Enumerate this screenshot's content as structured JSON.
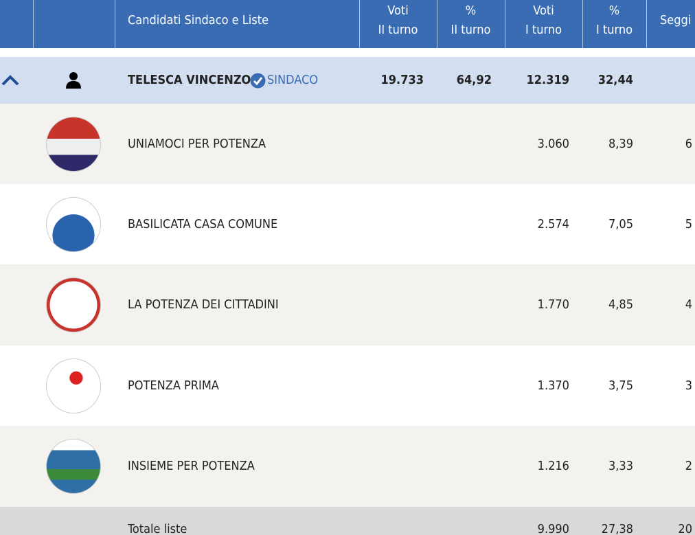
{
  "header": {
    "columns": [
      "Candidati Sindaco e Liste",
      "Voti\nII turno",
      "%\nII turno",
      "Voti\nI turno",
      "%\nI turno",
      "Seggi"
    ]
  },
  "candidate": {
    "name": "TELESCA VINCENZO",
    "role": "SINDACO",
    "votes_2": "19.733",
    "pct_2": "64,92",
    "votes_1": "12.319",
    "pct_1": "32,44"
  },
  "lists": [
    {
      "name": "UNIAMOCI PER POTENZA",
      "votes_1": "3.060",
      "pct_1": "8,39",
      "seats": "6"
    },
    {
      "name": "BASILICATA CASA COMUNE",
      "votes_1": "2.574",
      "pct_1": "7,05",
      "seats": "5"
    },
    {
      "name": "LA POTENZA DEI CITTADINI",
      "votes_1": "1.770",
      "pct_1": "4,85",
      "seats": "4"
    },
    {
      "name": "POTENZA PRIMA",
      "votes_1": "1.370",
      "pct_1": "3,75",
      "seats": "3"
    },
    {
      "name": "INSIEME PER POTENZA",
      "votes_1": "1.216",
      "pct_1": "3,33",
      "seats": "2"
    }
  ],
  "total": {
    "label": "Totale liste",
    "votes_1": "9.990",
    "pct_1": "27,38",
    "seats": "20"
  }
}
